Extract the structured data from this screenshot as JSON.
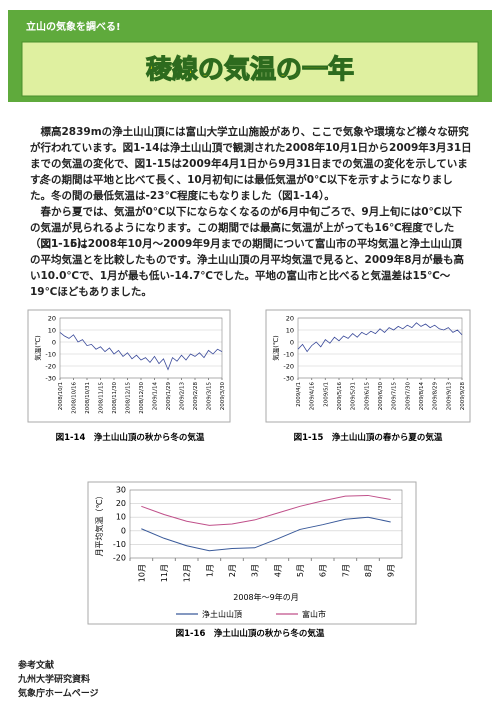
{
  "header": {
    "subtitle": "立山の気象を調べる!",
    "title": "稜線の気温の一年"
  },
  "paragraphs": [
    "標高2839mの浄土山山頂には富山大学立山施設があり、ここで気象や環境など様々な研究が行われています。図1-14は浄土山山頂で観測された2008年10月1日から2009年3月31日までの気温の変化で、図1-15は2009年4月1日から9月31日までの気温の変化を示しています。",
    "冬の期間は平地と比べて長く、10月初旬には最低気温が0℃以下を示すようになりました。冬の間の最低気温は-23℃程度にもなりました（図1-14）。",
    "春から夏では、気温が0℃以下にならなくなるのが6月中旬ごろで、9月上旬には0℃以下の気温が見られるようになります。この期間では最高に気温が上がっても16℃程度でした（図1-15）。",
    "図1-16は2008年10月～2009年9月までの期間について富山市の平均気温と浄土山山頂の平均気温とを比較したものです。浄土山山頂の月平均気温で見ると、2009年8月が最も高い10.0℃で、1月が最も低い-14.7℃でした。平地の富山市と比べると気温差は15℃～19℃ほどもありました。"
  ],
  "chart_data": [
    {
      "type": "line",
      "caption": "図1-14　浄土山山頂の秋から冬の気温",
      "y_label": "気温(℃)",
      "color": "#3a4a9a",
      "grid": true,
      "x": [
        "2008/10/1",
        "2008/10/6",
        "2008/10/11",
        "2008/10/16",
        "2008/10/21",
        "2008/10/26",
        "2008/10/31",
        "2008/11/5",
        "2008/11/10",
        "2008/11/15",
        "2008/11/20",
        "2008/11/25",
        "2008/11/30",
        "2008/12/5",
        "2008/12/10",
        "2008/12/15",
        "2008/12/20",
        "2008/12/25",
        "2008/12/30",
        "2009/1/4",
        "2009/1/9",
        "2009/1/14",
        "2009/1/19",
        "2009/1/24",
        "2009/1/29",
        "2009/2/3",
        "2009/2/8",
        "2009/2/13",
        "2009/2/18",
        "2009/2/23",
        "2009/2/28",
        "2009/3/5",
        "2009/3/10",
        "2009/3/15",
        "2009/3/20",
        "2009/3/25",
        "2009/3/30"
      ],
      "values": [
        8,
        5,
        3,
        6,
        0,
        2,
        -3,
        -2,
        -6,
        -4,
        -8,
        -5,
        -10,
        -7,
        -12,
        -9,
        -14,
        -11,
        -15,
        -13,
        -17,
        -12,
        -18,
        -14,
        -23,
        -13,
        -16,
        -11,
        -15,
        -10,
        -12,
        -9,
        -13,
        -7,
        -10,
        -6,
        -8
      ],
      "xticks": [
        "2008/10/1",
        "2008/10/16",
        "2008/10/31",
        "2008/11/15",
        "2008/11/30",
        "2008/12/15",
        "2008/12/30",
        "2009/1/14",
        "2009/1/29",
        "2009/2/13",
        "2009/2/28",
        "2009/3/15",
        "2009/3/30"
      ],
      "ylim": [
        -30,
        20
      ],
      "yticks": [
        -30,
        -20,
        -10,
        0,
        10,
        20
      ]
    },
    {
      "type": "line",
      "caption": "図1-15　浄土山山頂の春から夏の気温",
      "y_label": "気温(℃)",
      "color": "#3a4a9a",
      "grid": true,
      "x": [
        "2009/4/1",
        "2009/4/6",
        "2009/4/11",
        "2009/4/16",
        "2009/4/21",
        "2009/4/26",
        "2009/5/1",
        "2009/5/6",
        "2009/5/11",
        "2009/5/16",
        "2009/5/21",
        "2009/5/26",
        "2009/5/31",
        "2009/6/5",
        "2009/6/10",
        "2009/6/15",
        "2009/6/20",
        "2009/6/25",
        "2009/6/30",
        "2009/7/5",
        "2009/7/10",
        "2009/7/15",
        "2009/7/20",
        "2009/7/25",
        "2009/7/30",
        "2009/8/4",
        "2009/8/9",
        "2009/8/14",
        "2009/8/19",
        "2009/8/24",
        "2009/8/29",
        "2009/9/3",
        "2009/9/8",
        "2009/9/13",
        "2009/9/18",
        "2009/9/23",
        "2009/9/28"
      ],
      "values": [
        -6,
        -2,
        -8,
        -3,
        0,
        -4,
        2,
        -1,
        4,
        1,
        5,
        3,
        7,
        4,
        8,
        6,
        9,
        7,
        11,
        8,
        12,
        10,
        13,
        11,
        14,
        12,
        16,
        13,
        15,
        12,
        14,
        11,
        10,
        12,
        8,
        10,
        6
      ],
      "xticks": [
        "2009/4/1",
        "2009/4/16",
        "2009/5/1",
        "2009/5/16",
        "2009/5/31",
        "2009/6/15",
        "2009/6/30",
        "2009/7/15",
        "2009/7/30",
        "2009/8/14",
        "2009/8/29",
        "2009/9/13",
        "2009/9/28"
      ],
      "ylim": [
        -30,
        20
      ],
      "yticks": [
        -30,
        -20,
        -10,
        0,
        10,
        20
      ]
    },
    {
      "type": "line",
      "caption": "図1-16　浄土山山頂の秋から冬の気温",
      "y_label": "月平均気温（℃）",
      "x_label": "2008年～9年の月",
      "grid": true,
      "legend": "bottom",
      "categories": [
        "10月",
        "11月",
        "12月",
        "1月",
        "2月",
        "3月",
        "4月",
        "5月",
        "6月",
        "7月",
        "8月",
        "9月"
      ],
      "series": [
        {
          "name": "浄土山山頂",
          "color": "#3a5a9a",
          "values": [
            1.5,
            -5.5,
            -11,
            -14.7,
            -13,
            -12.5,
            -6,
            1,
            4.5,
            8.5,
            10.0,
            6.5
          ]
        },
        {
          "name": "富山市",
          "color": "#c0508a",
          "values": [
            18,
            12,
            7,
            4,
            5,
            8,
            13,
            18,
            22,
            25.5,
            26,
            23
          ]
        }
      ],
      "ylim": [
        -20,
        30
      ],
      "yticks": [
        -20,
        -10,
        0,
        10,
        20,
        30
      ]
    }
  ],
  "references": [
    "参考文献",
    "九州大学研究資料",
    "気象庁ホームページ"
  ]
}
